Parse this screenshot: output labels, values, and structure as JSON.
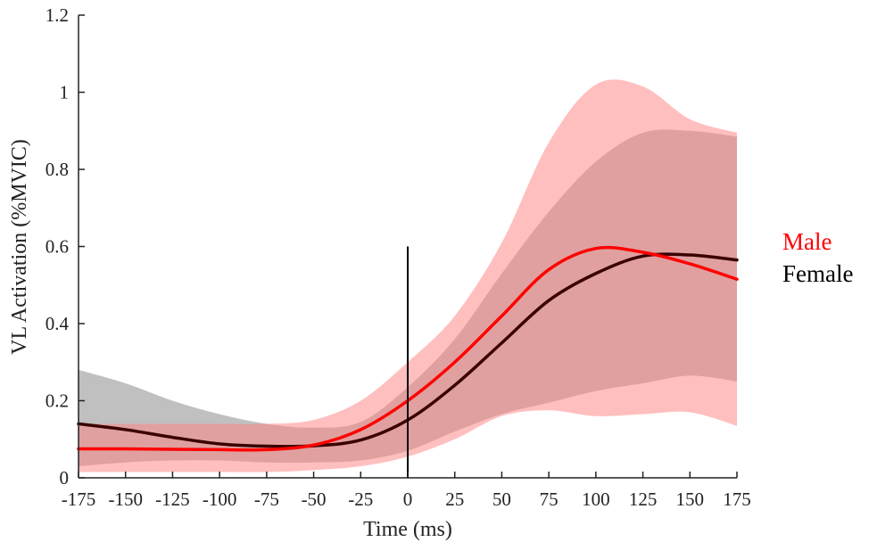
{
  "chart_data": {
    "type": "line",
    "title": "",
    "xlabel": "Time (ms)",
    "ylabel": "VL Activation (%MVIC)",
    "xlim": [
      -175,
      175
    ],
    "ylim": [
      0,
      1.2
    ],
    "xticks": [
      -175,
      -150,
      -125,
      -100,
      -75,
      -50,
      -25,
      0,
      25,
      50,
      75,
      100,
      125,
      150,
      175
    ],
    "yticks": [
      0,
      0.2,
      0.4,
      0.6,
      0.8,
      1,
      1.2
    ],
    "xtick_labels": [
      "-175",
      "-150",
      "-125",
      "-100",
      "-75",
      "-50",
      "-25",
      "0",
      "25",
      "50",
      "75",
      "100",
      "125",
      "150",
      "175"
    ],
    "ytick_labels": [
      "0",
      "0.2",
      "0.4",
      "0.6",
      "0.8",
      "1",
      "1.2"
    ],
    "grid": false,
    "legend_position": "right",
    "vertical_marker": {
      "x": 0,
      "y_top": 0.6,
      "color": "#000000"
    },
    "x": [
      -175,
      -150,
      -125,
      -100,
      -75,
      -50,
      -25,
      0,
      25,
      50,
      75,
      100,
      125,
      150,
      175
    ],
    "series": [
      {
        "name": "Female",
        "color": "#3a0000",
        "band_color": "#8c8c8c",
        "band_opacity": 0.55,
        "values": [
          0.14,
          0.125,
          0.105,
          0.088,
          0.082,
          0.083,
          0.098,
          0.15,
          0.24,
          0.35,
          0.46,
          0.53,
          0.575,
          0.578,
          0.565
        ],
        "lower": [
          0.03,
          0.04,
          0.045,
          0.045,
          0.04,
          0.04,
          0.045,
          0.07,
          0.12,
          0.165,
          0.195,
          0.225,
          0.245,
          0.265,
          0.25
        ],
        "upper": [
          0.28,
          0.245,
          0.2,
          0.165,
          0.14,
          0.13,
          0.145,
          0.235,
          0.36,
          0.53,
          0.69,
          0.82,
          0.895,
          0.9,
          0.885
        ]
      },
      {
        "name": "Male",
        "color": "#ff0000",
        "band_color": "#ff8080",
        "band_opacity": 0.5,
        "values": [
          0.075,
          0.075,
          0.074,
          0.073,
          0.073,
          0.085,
          0.125,
          0.2,
          0.3,
          0.42,
          0.54,
          0.595,
          0.585,
          0.555,
          0.515
        ],
        "lower": [
          0.015,
          0.015,
          0.015,
          0.015,
          0.015,
          0.02,
          0.03,
          0.055,
          0.1,
          0.16,
          0.175,
          0.16,
          0.165,
          0.17,
          0.135
        ],
        "upper": [
          0.14,
          0.14,
          0.14,
          0.14,
          0.14,
          0.15,
          0.2,
          0.3,
          0.42,
          0.61,
          0.87,
          1.02,
          1.015,
          0.93,
          0.895
        ]
      }
    ],
    "legend": [
      {
        "label": "Male",
        "color": "#ff0000"
      },
      {
        "label": "Female",
        "color": "#000000"
      }
    ]
  }
}
